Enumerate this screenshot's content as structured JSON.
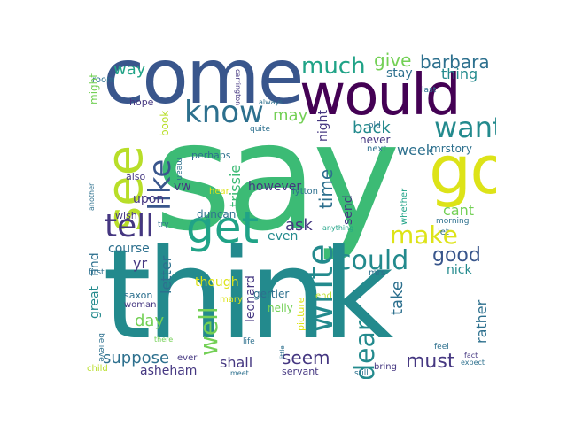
{
  "words": [
    {
      "text": "say",
      "color": "gg"
    },
    {
      "text": "think",
      "color": "t"
    },
    {
      "text": "come",
      "color": "db"
    },
    {
      "text": "would",
      "color": "dp"
    },
    {
      "text": "go",
      "color": "y"
    },
    {
      "text": "see",
      "color": "ly"
    },
    {
      "text": "get",
      "color": "tg"
    },
    {
      "text": "know",
      "color": "b"
    },
    {
      "text": "want",
      "color": "t"
    },
    {
      "text": "like",
      "color": "db"
    },
    {
      "text": "tell",
      "color": "p"
    },
    {
      "text": "much",
      "color": "tg"
    },
    {
      "text": "give",
      "color": "g"
    },
    {
      "text": "barbara",
      "color": "b"
    },
    {
      "text": "way",
      "color": "tg"
    },
    {
      "text": "thing",
      "color": "t"
    },
    {
      "text": "stay",
      "color": "b"
    },
    {
      "text": "may",
      "color": "g"
    },
    {
      "text": "back",
      "color": "t"
    },
    {
      "text": "night",
      "color": "p"
    },
    {
      "text": "week",
      "color": "b"
    },
    {
      "text": "mrstory",
      "color": "b"
    },
    {
      "text": "never",
      "color": "p"
    },
    {
      "text": "next",
      "color": "b"
    },
    {
      "text": "trissie",
      "color": "gg"
    },
    {
      "text": "time",
      "color": "b"
    },
    {
      "text": "write",
      "color": "p"
    },
    {
      "text": "make",
      "color": "y"
    },
    {
      "text": "cant",
      "color": "g"
    },
    {
      "text": "ask",
      "color": "p"
    },
    {
      "text": "send",
      "color": "p"
    },
    {
      "text": "could",
      "color": "t"
    },
    {
      "text": "good",
      "color": "db"
    },
    {
      "text": "dear",
      "color": "t"
    },
    {
      "text": "nick",
      "color": "t"
    },
    {
      "text": "take",
      "color": "b"
    },
    {
      "text": "must",
      "color": "p"
    },
    {
      "text": "rather",
      "color": "b"
    },
    {
      "text": "seem",
      "color": "p"
    },
    {
      "text": "well",
      "color": "g"
    },
    {
      "text": "shall",
      "color": "p"
    },
    {
      "text": "suppose",
      "color": "b"
    },
    {
      "text": "day",
      "color": "g"
    },
    {
      "text": "great",
      "color": "t"
    },
    {
      "text": "find",
      "color": "b"
    },
    {
      "text": "course",
      "color": "b"
    },
    {
      "text": "yr",
      "color": "p"
    },
    {
      "text": "letter",
      "color": "b"
    },
    {
      "text": "upon",
      "color": "p"
    },
    {
      "text": "vw",
      "color": "p"
    },
    {
      "text": "duncan",
      "color": "b"
    },
    {
      "text": "however",
      "color": "p"
    },
    {
      "text": "even",
      "color": "t"
    },
    {
      "text": "leonard",
      "color": "p"
    },
    {
      "text": "gertler",
      "color": "b"
    },
    {
      "text": "nelly",
      "color": "g"
    },
    {
      "text": "picture",
      "color": "y"
    },
    {
      "text": "though",
      "color": "y"
    },
    {
      "text": "asheham",
      "color": "p"
    },
    {
      "text": "book",
      "color": "ly"
    },
    {
      "text": "perhaps",
      "color": "b"
    },
    {
      "text": "hope",
      "color": "p"
    },
    {
      "text": "room",
      "color": "b"
    },
    {
      "text": "might",
      "color": "g"
    },
    {
      "text": "also",
      "color": "p"
    },
    {
      "text": "wish",
      "color": "p"
    },
    {
      "text": "mean",
      "color": "b"
    },
    {
      "text": "hear",
      "color": "y"
    },
    {
      "text": "lytton",
      "color": "b"
    },
    {
      "text": "whether",
      "color": "tg"
    },
    {
      "text": "morning",
      "color": "b"
    },
    {
      "text": "let",
      "color": "b"
    },
    {
      "text": "anything",
      "color": "tg"
    },
    {
      "text": "mrs",
      "color": "b"
    },
    {
      "text": "end",
      "color": "ly"
    },
    {
      "text": "saxon",
      "color": "b"
    },
    {
      "text": "woman",
      "color": "p"
    },
    {
      "text": "mary",
      "color": "y"
    },
    {
      "text": "life",
      "color": "b"
    },
    {
      "text": "ever",
      "color": "p"
    },
    {
      "text": "servant",
      "color": "p"
    },
    {
      "text": "bring",
      "color": "p"
    },
    {
      "text": "still",
      "color": "b"
    },
    {
      "text": "fact",
      "color": "p"
    },
    {
      "text": "expect",
      "color": "b"
    },
    {
      "text": "feel",
      "color": "b"
    },
    {
      "text": "child",
      "color": "ly"
    },
    {
      "text": "meet",
      "color": "b"
    },
    {
      "text": "little",
      "color": "b"
    },
    {
      "text": "there",
      "color": "g"
    },
    {
      "text": "believe",
      "color": "b"
    },
    {
      "text": "first",
      "color": "b"
    },
    {
      "text": "try",
      "color": "b"
    },
    {
      "text": "another",
      "color": "b"
    },
    {
      "text": "quite",
      "color": "b"
    },
    {
      "text": "always",
      "color": "b"
    },
    {
      "text": "carrington",
      "color": "p"
    },
    {
      "text": "old",
      "color": "b"
    },
    {
      "text": "last",
      "color": "b"
    }
  ],
  "palette": {
    "y": "#dde318",
    "ly": "#b8de29",
    "g": "#73d055",
    "gg": "#3cbb75",
    "tg": "#20a387",
    "t": "#238a8d",
    "b": "#2d708e",
    "db": "#39568c",
    "p": "#453781",
    "dp": "#440154"
  }
}
